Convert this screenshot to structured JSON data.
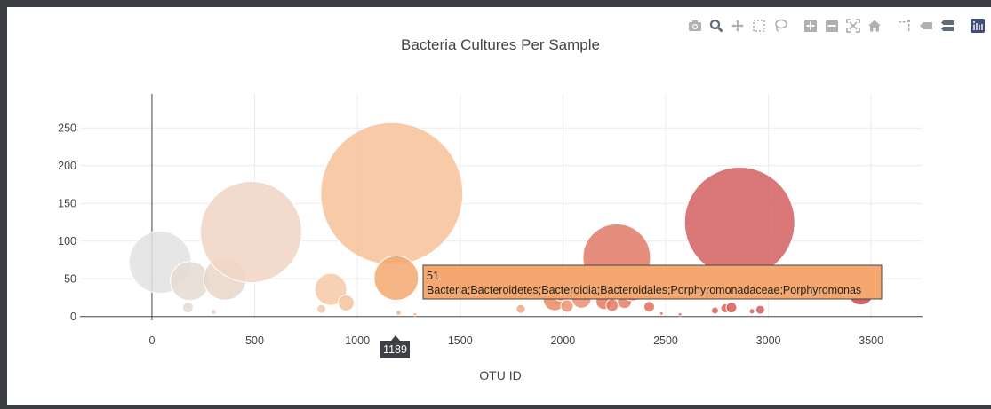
{
  "modebar": {
    "icons": [
      "camera-icon",
      "zoom-icon",
      "pan-icon",
      "box-select-icon",
      "lasso-icon",
      "zoom-in-icon",
      "zoom-out-icon",
      "autoscale-icon",
      "home-icon",
      "spike-lines-icon",
      "hover-closest-icon",
      "hover-compare-icon",
      "plotly-logo-icon"
    ],
    "icon_color": "#b0b0b0",
    "active_icon_color": "#5f6b78"
  },
  "colors": {
    "background": "#ffffff",
    "grid": "#ececec",
    "axis": "#444444",
    "tooltip_bg": "#f4a86f",
    "tooltip_border": "#444444",
    "axis_label_bg": "#3d4146"
  },
  "chart_data": {
    "type": "scatter",
    "mode": "markers",
    "title": "Bacteria Cultures Per Sample",
    "xlabel": "OTU ID",
    "ylabel": "",
    "xlim": [
      -350,
      3750
    ],
    "ylim": [
      -5,
      295
    ],
    "x_ticks": [
      0,
      500,
      1000,
      1500,
      2000,
      2500,
      3000,
      3500
    ],
    "y_ticks": [
      0,
      50,
      100,
      150,
      200,
      250
    ],
    "grid": true,
    "colorscale": "Earth (grey to peach to red)",
    "points": [
      {
        "x": 40,
        "y": 72,
        "r": 35,
        "color": "#e2e2e2"
      },
      {
        "x": 185,
        "y": 47,
        "r": 22,
        "color": "#e6dad3"
      },
      {
        "x": 175,
        "y": 12,
        "r": 6,
        "color": "#e6dad3"
      },
      {
        "x": 355,
        "y": 50,
        "r": 24,
        "color": "#ead6ca"
      },
      {
        "x": 300,
        "y": 6,
        "r": 3,
        "color": "#eed0bd"
      },
      {
        "x": 482,
        "y": 112,
        "r": 57,
        "color": "#f0d5c4"
      },
      {
        "x": 870,
        "y": 36,
        "r": 18,
        "color": "#f4c9a7"
      },
      {
        "x": 945,
        "y": 18,
        "r": 9,
        "color": "#f4c29e"
      },
      {
        "x": 825,
        "y": 10,
        "r": 5,
        "color": "#f5c8a4"
      },
      {
        "x": 1167,
        "y": 163,
        "r": 80,
        "color": "#f7c199"
      },
      {
        "x": 1189,
        "y": 51,
        "r": 25,
        "color": "#f4a86f"
      },
      {
        "x": 1200,
        "y": 5,
        "r": 3,
        "color": "#f5b98c"
      },
      {
        "x": 1280,
        "y": 3,
        "r": 2,
        "color": "#f4b58a"
      },
      {
        "x": 1795,
        "y": 10,
        "r": 5,
        "color": "#f1a584"
      },
      {
        "x": 1960,
        "y": 23,
        "r": 13,
        "color": "#ec8a64"
      },
      {
        "x": 1990,
        "y": 30,
        "r": 8,
        "color": "#ee9474"
      },
      {
        "x": 2020,
        "y": 14,
        "r": 7,
        "color": "#ed9273"
      },
      {
        "x": 2090,
        "y": 24,
        "r": 11,
        "color": "#ec8e73"
      },
      {
        "x": 2200,
        "y": 20,
        "r": 9,
        "color": "#e7785f"
      },
      {
        "x": 2240,
        "y": 15,
        "r": 7,
        "color": "#e67a62"
      },
      {
        "x": 2262,
        "y": 78,
        "r": 38,
        "color": "#e07a66"
      },
      {
        "x": 2300,
        "y": 20,
        "r": 8,
        "color": "#e48066"
      },
      {
        "x": 2340,
        "y": 36,
        "r": 13,
        "color": "#e48368"
      },
      {
        "x": 2420,
        "y": 13,
        "r": 6,
        "color": "#e3705c"
      },
      {
        "x": 2480,
        "y": 4,
        "r": 2,
        "color": "#e3705c"
      },
      {
        "x": 2570,
        "y": 3,
        "r": 2,
        "color": "#e06e5c"
      },
      {
        "x": 2740,
        "y": 8,
        "r": 4,
        "color": "#d8605a"
      },
      {
        "x": 2790,
        "y": 11,
        "r": 5,
        "color": "#d8605a"
      },
      {
        "x": 2820,
        "y": 12,
        "r": 6,
        "color": "#d65e5a"
      },
      {
        "x": 2860,
        "y": 125,
        "r": 62,
        "color": "#d45f60"
      },
      {
        "x": 2920,
        "y": 7,
        "r": 3,
        "color": "#d45b58"
      },
      {
        "x": 2960,
        "y": 9,
        "r": 5,
        "color": "#d35a58"
      },
      {
        "x": 3450,
        "y": 33,
        "r": 15,
        "color": "#c9474e"
      }
    ],
    "hover": {
      "x_label": "1189",
      "value": "51",
      "text": "Bacteria;Bacteroidetes;Bacteroidia;Bacteroidales;Porphyromonadaceae;Porphyromonas"
    }
  }
}
